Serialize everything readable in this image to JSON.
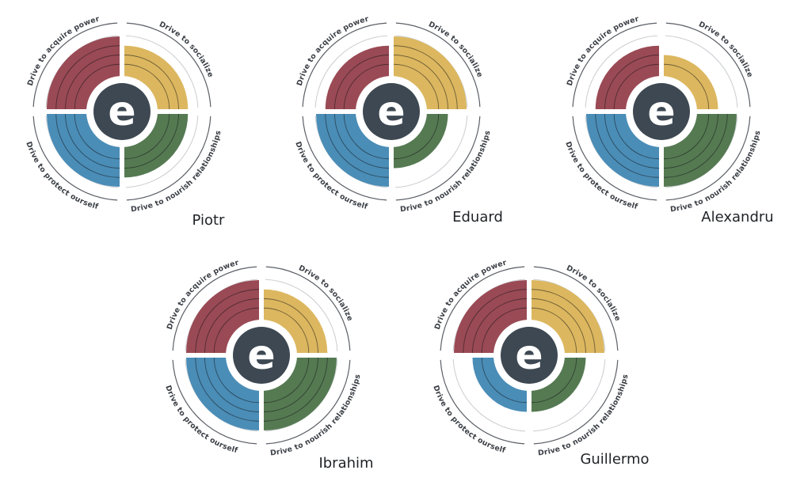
{
  "chart_data": [
    {
      "type": "radial-quadrant",
      "name": "Piotr",
      "categories": [
        "Drive to acquire power",
        "Drive to socialize",
        "Drive to nourish relationships",
        "Drive to protect ourself"
      ],
      "values": [
        4,
        3,
        3,
        4
      ],
      "colors": [
        "#9a4a55",
        "#dcb75f",
        "#557a52",
        "#4a8db7"
      ],
      "max_level": 4
    },
    {
      "type": "radial-quadrant",
      "name": "Eduard",
      "categories": [
        "Drive to acquire power",
        "Drive to socialize",
        "Drive to nourish relationships",
        "Drive to protect ourself"
      ],
      "values": [
        3,
        4,
        2,
        4
      ],
      "colors": [
        "#9a4a55",
        "#dcb75f",
        "#557a52",
        "#4a8db7"
      ],
      "max_level": 4
    },
    {
      "type": "radial-quadrant",
      "name": "Alexandru",
      "categories": [
        "Drive to acquire power",
        "Drive to socialize",
        "Drive to nourish relationships",
        "Drive to protect ourself"
      ],
      "values": [
        3,
        2,
        4,
        4
      ],
      "colors": [
        "#9a4a55",
        "#dcb75f",
        "#557a52",
        "#4a8db7"
      ],
      "max_level": 4
    },
    {
      "type": "radial-quadrant",
      "name": "Ibrahim",
      "categories": [
        "Drive to acquire power",
        "Drive to socialize",
        "Drive to nourish relationships",
        "Drive to protect ourself"
      ],
      "values": [
        4,
        3,
        4,
        4
      ],
      "colors": [
        "#9a4a55",
        "#dcb75f",
        "#557a52",
        "#4a8db7"
      ],
      "max_level": 4
    },
    {
      "type": "radial-quadrant",
      "name": "Guillermo",
      "categories": [
        "Drive to acquire power",
        "Drive to socialize",
        "Drive to nourish relationships",
        "Drive to protect ourself"
      ],
      "values": [
        4,
        4,
        2,
        2
      ],
      "colors": [
        "#9a4a55",
        "#dcb75f",
        "#557a52",
        "#4a8db7"
      ],
      "max_level": 4
    }
  ],
  "center_logo_letter": "e",
  "center_logo_color": "#3d4852"
}
